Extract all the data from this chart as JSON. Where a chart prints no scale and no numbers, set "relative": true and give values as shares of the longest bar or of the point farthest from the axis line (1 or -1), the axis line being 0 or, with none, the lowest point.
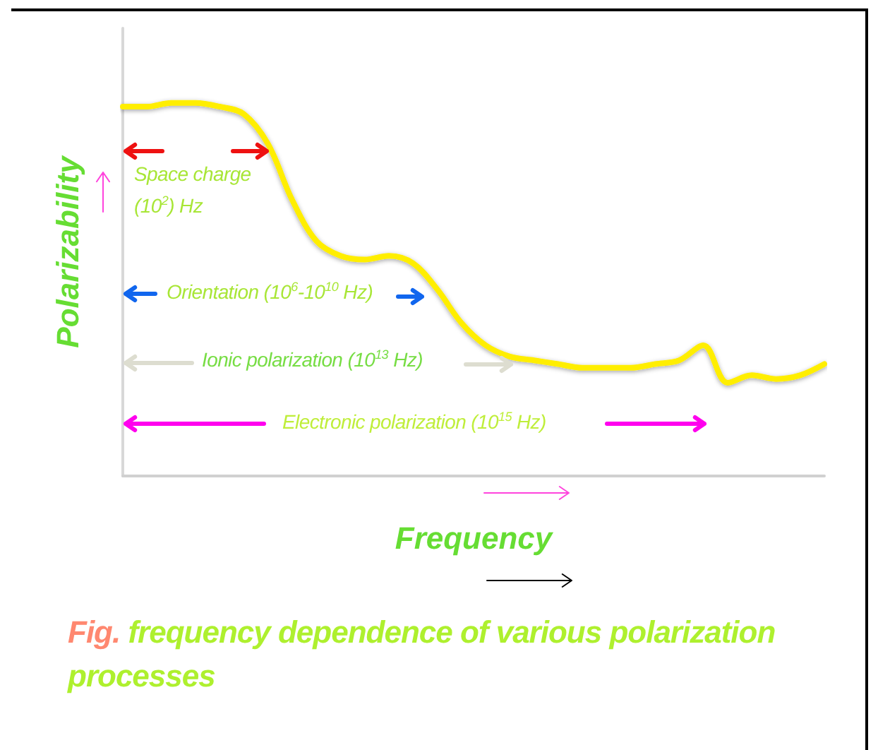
{
  "chart_data": {
    "type": "line",
    "relative": true,
    "xlabel": "Frequency",
    "ylabel": "Polarizability",
    "categories": [
      null,
      null,
      null,
      null,
      null,
      null,
      null,
      null,
      null,
      null,
      null,
      null,
      null,
      null,
      null,
      null,
      null,
      null,
      null,
      null,
      null,
      null,
      null,
      null,
      null,
      null,
      null,
      null,
      null,
      null
    ],
    "series": [
      {
        "color": "#ffee00",
        "values": [
          0.99,
          0.99,
          1,
          1,
          0.99,
          0.97,
          0.89,
          0.74,
          0.63,
          0.59,
          0.58,
          0.59,
          0.57,
          0.5,
          0.41,
          0.35,
          0.32,
          0.31,
          0.3,
          0.29,
          0.29,
          0.29,
          0.3,
          0.31,
          0.35,
          0.25,
          0.27,
          0.26,
          0.27,
          0.3
        ]
      }
    ],
    "annotations": [
      "Space charge (10$^{2}$) Hz",
      "Orientation (10$^{6}$-10$^{10}$ Hz)",
      "Ionic polarization (10$^{13}$ Hz)",
      "Electronic polarization (10$^{15}$ Hz)",
      "Fig. frequency dependence of various polarization processes"
    ],
    "grid": false,
    "marker": "none",
    "line_style": "solid"
  }
}
